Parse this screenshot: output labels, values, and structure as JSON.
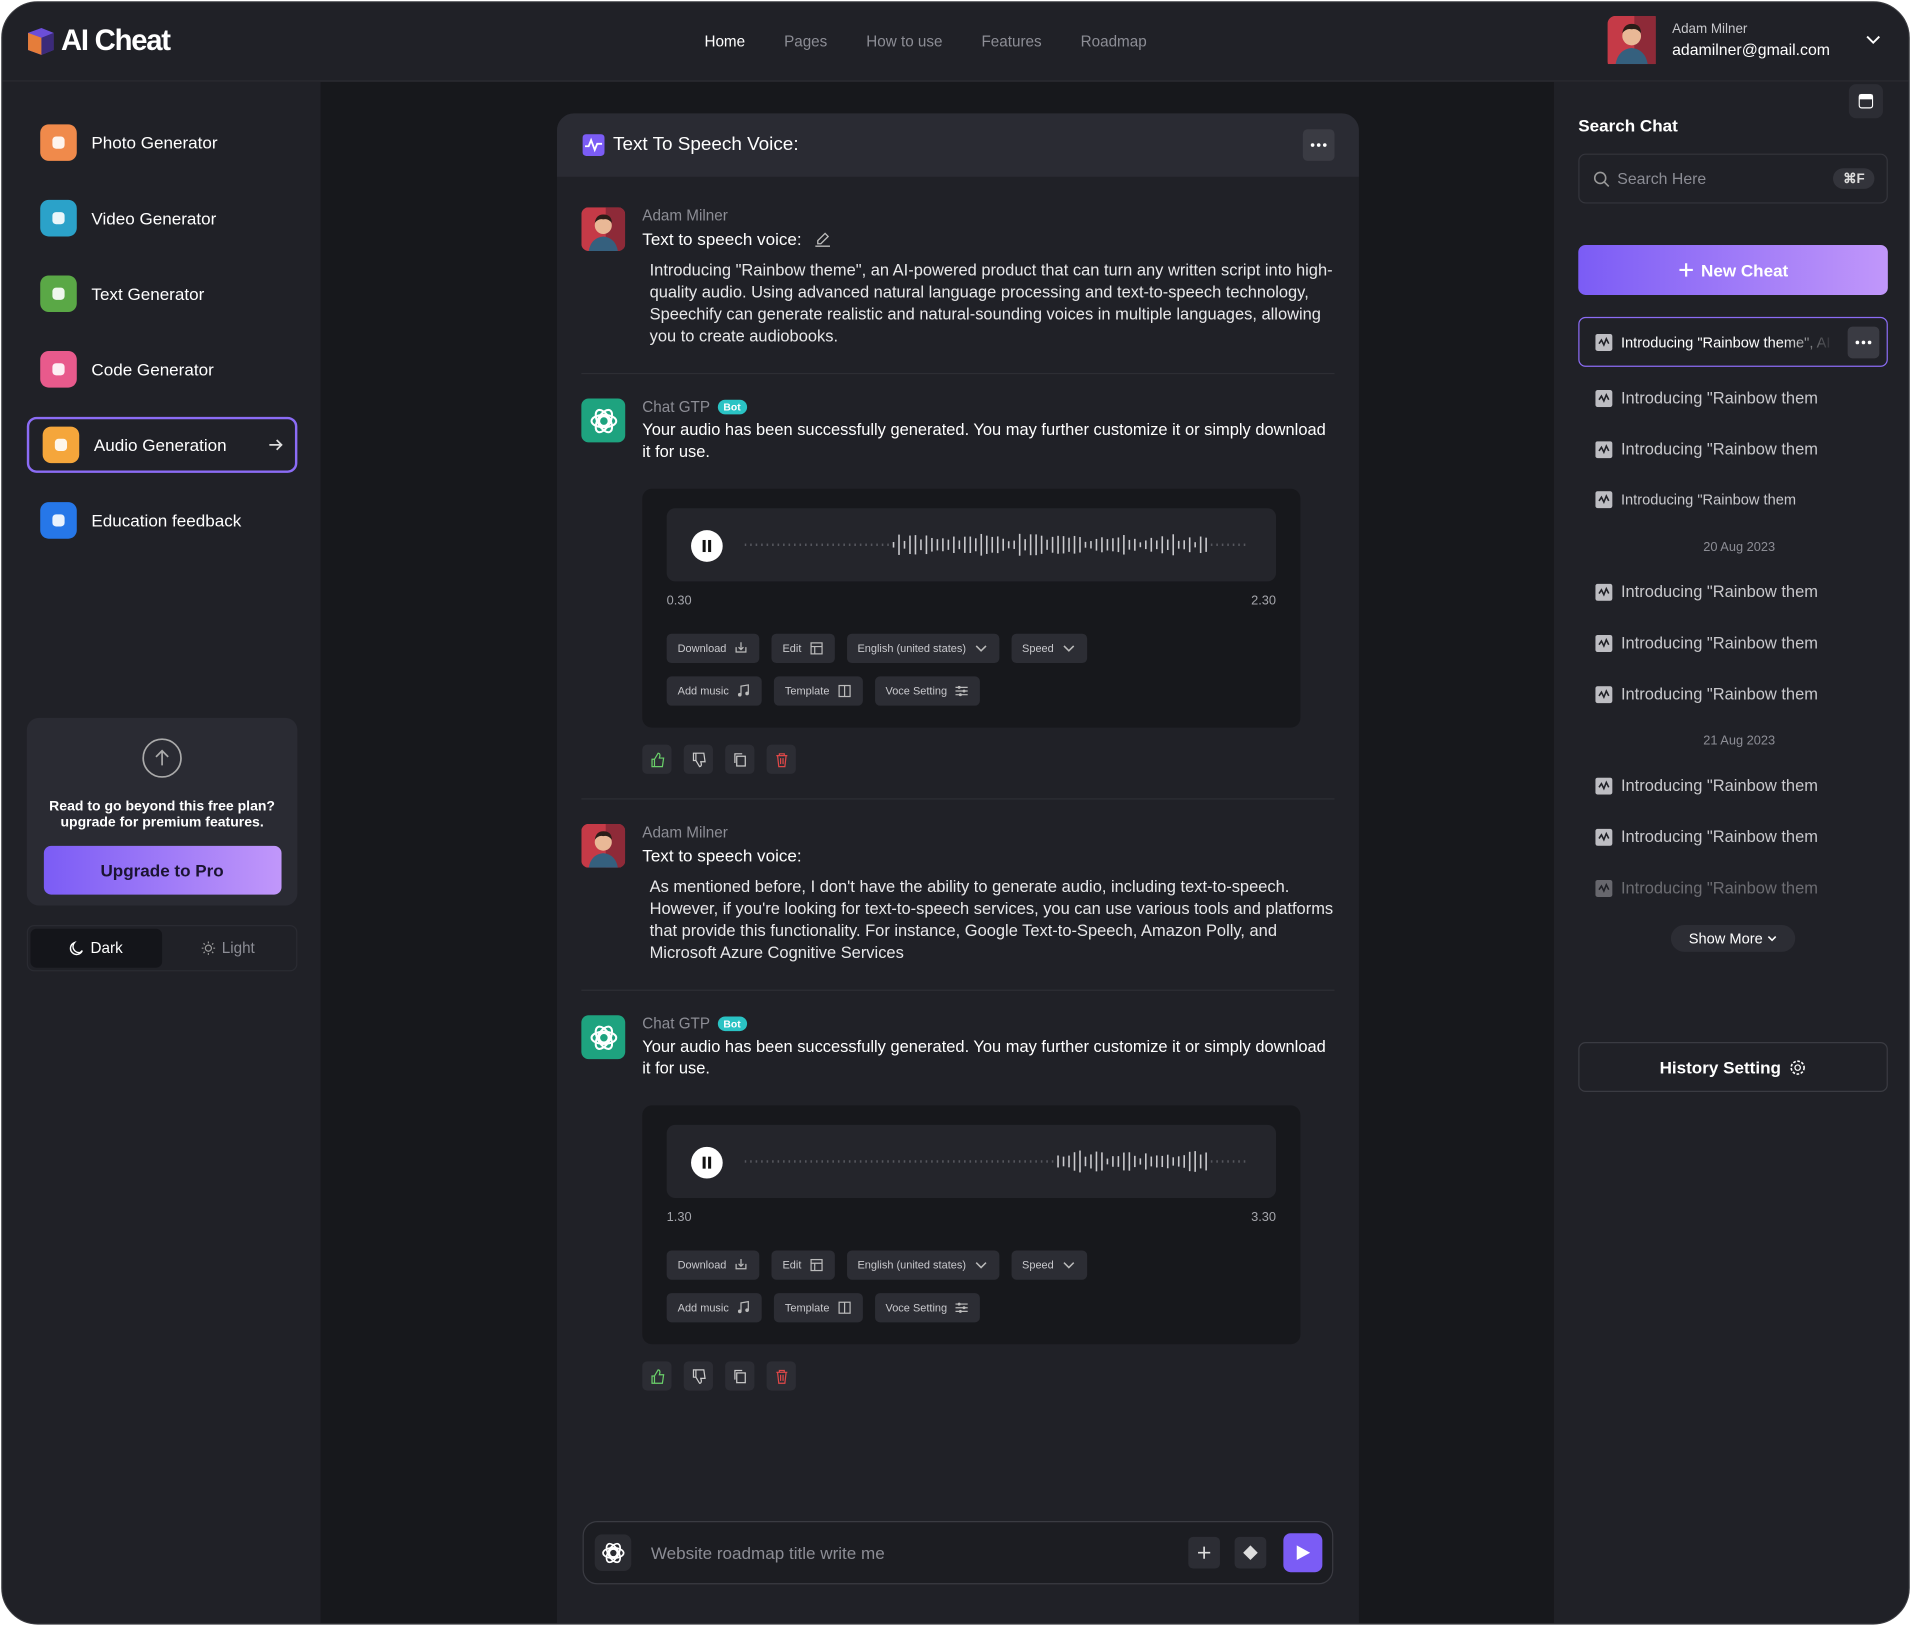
{
  "nav": {
    "logo": "AI Cheat",
    "links": [
      "Home",
      "Pages",
      "How to use",
      "Features",
      "Roadmap"
    ],
    "user_name": "Adam Milner",
    "user_email": "adamilner@gmail.com"
  },
  "sidebar": {
    "items": [
      "Photo Generator",
      "Video Generator",
      "Text Generator",
      "Code Generator",
      "Audio Generation",
      "Education feedback"
    ],
    "upgrade_text": "Read to go beyond this free plan? upgrade for premium features.",
    "upgrade_button": "Upgrade to Pro",
    "theme_dark": "Dark",
    "theme_light": "Light"
  },
  "chat": {
    "title": "Text To Speech Voice:",
    "messages": [
      {
        "author": "Adam Milner",
        "subject": "Text to speech voice:",
        "body": "Introducing \"Rainbow theme\", an AI-powered product that can turn any written script into high-quality audio. Using advanced natural language processing and text-to-speech technology, Speechify can generate realistic and natural-sounding voices in multiple languages, allowing you to create audiobooks."
      },
      {
        "author": "Chat GTP",
        "badge": "Bot",
        "body": "Your audio has been successfully generated. You may further customize it or simply download it for use.",
        "start": "0.30",
        "end": "2.30",
        "controls": [
          [
            "Download",
            "Edit",
            "English (united states)",
            "Speed"
          ],
          [
            "Add music",
            "Template",
            "Voce Setting"
          ]
        ]
      },
      {
        "author": "Adam Milner",
        "subject": "Text to speech voice:",
        "body": "As mentioned before, I don't have the ability to generate audio, including text-to-speech. However, if you're looking for text-to-speech services, you can use various tools and platforms that provide this functionality. For instance, Google Text-to-Speech, Amazon Polly, and Microsoft Azure Cognitive Services"
      },
      {
        "author": "Chat GTP",
        "badge": "Bot",
        "body": "Your audio has been successfully generated. You may further customize it or simply download it for use.",
        "start": "1.30",
        "end": "3.30",
        "controls": [
          [
            "Download",
            "Edit",
            "English (united states)",
            "Speed"
          ],
          [
            "Add music",
            "Template",
            "Voce Setting"
          ]
        ]
      }
    ],
    "input_placeholder": "Website roadmap title write me"
  },
  "history": {
    "title": "Search Chat",
    "search_placeholder": "Search Here",
    "shortcut": "⌘F",
    "new_button": "New Cheat",
    "active": "Introducing \"Rainbow theme\", AI",
    "groups": [
      {
        "items": [
          "Introducing \"Rainbow them",
          "Introducing \"Rainbow them",
          "Introducing \"Rainbow them"
        ]
      },
      {
        "date": "20 Aug 2023",
        "items": [
          "Introducing \"Rainbow them",
          "Introducing \"Rainbow them",
          "Introducing \"Rainbow them"
        ]
      },
      {
        "date": "21 Aug 2023",
        "items": [
          "Introducing \"Rainbow them",
          "Introducing \"Rainbow them",
          "Introducing \"Rainbow them"
        ]
      }
    ],
    "show_more": "Show More",
    "setting_button": "History Setting"
  }
}
